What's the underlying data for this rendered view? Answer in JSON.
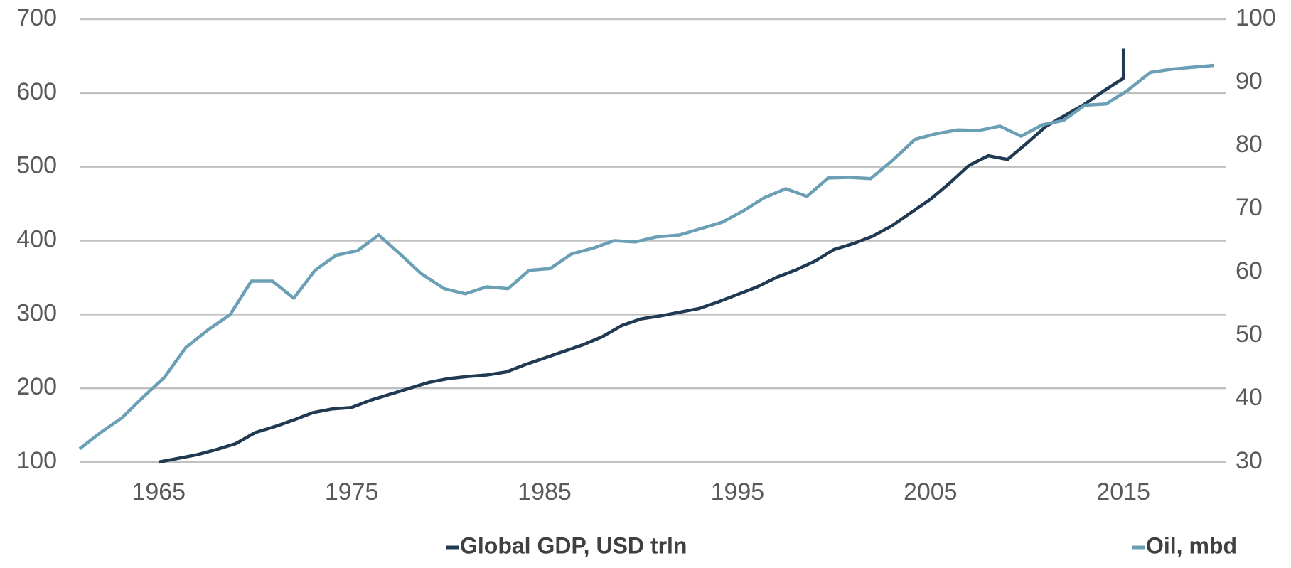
{
  "chart_data": {
    "type": "line",
    "xlim": [
      1960.9,
      2020.3
    ],
    "xticks": [
      1965,
      1975,
      1985,
      1995,
      2005,
      2015
    ],
    "ylim": [
      100,
      700
    ],
    "yticks": [
      100,
      200,
      300,
      400,
      500,
      600,
      700
    ],
    "y2lim": [
      30,
      100
    ],
    "y2ticks": [
      30,
      40,
      50,
      60,
      70,
      80,
      90,
      100
    ],
    "grid": true,
    "legend": "bottom",
    "series": [
      {
        "name": "Global GDP, USD trln",
        "color": "#1f3a52",
        "x": [
          1965,
          1966,
          1967,
          1968,
          1969,
          1970,
          1971,
          1972,
          1973,
          1974,
          1975,
          1976,
          1977,
          1978,
          1979,
          1980,
          1981,
          1982,
          1983,
          1984,
          1985,
          1986,
          1987,
          1988,
          1989,
          1990,
          1991,
          1992,
          1993,
          1994,
          1995,
          1996,
          1997,
          1998,
          1999,
          2000,
          2001,
          2002,
          2003,
          2004,
          2005,
          2006,
          2007,
          2008,
          2009,
          2010,
          2011,
          2012,
          2013,
          2014,
          2015,
          2015
        ],
        "values": [
          100,
          105,
          110,
          117,
          125,
          140,
          148,
          157,
          167,
          172,
          174,
          184,
          192,
          200,
          208,
          213,
          216,
          218,
          222,
          232,
          241,
          250,
          259,
          270,
          285,
          294,
          298,
          303,
          308,
          317,
          327,
          337,
          350,
          360,
          372,
          388,
          396,
          406,
          420,
          438,
          456,
          478,
          502,
          515,
          510,
          532,
          555,
          570,
          585,
          603,
          620,
          660
        ]
      },
      {
        "name": "Oil, mbd",
        "color": "#6a9fb5",
        "axis": "y2",
        "x": [
          1960.9,
          1962.0,
          1963.1,
          1964.2,
          1965.3,
          1966.4,
          1967.6,
          1968.7,
          1969.8,
          1970.9,
          1972.0,
          1973.1,
          1974.2,
          1975.3,
          1976.4,
          1977.5,
          1978.6,
          1979.8,
          1980.9,
          1982.0,
          1983.1,
          1984.2,
          1985.3,
          1986.4,
          1987.5,
          1988.6,
          1989.7,
          1990.8,
          1992.0,
          1993.1,
          1994.2,
          1995.3,
          1996.4,
          1997.5,
          1998.6,
          1999.7,
          2000.8,
          2001.9,
          2003.0,
          2004.2,
          2005.3,
          2006.4,
          2007.5,
          2008.6,
          2009.7,
          2010.8,
          2011.9,
          2013.0,
          2014.1,
          2015.2,
          2016.4,
          2017.5,
          2018.6,
          2019.7
        ],
        "values": [
          32.1,
          34.7,
          37.0,
          40.3,
          43.4,
          48.1,
          51.0,
          53.3,
          58.6,
          58.6,
          55.9,
          60.3,
          62.7,
          63.4,
          65.9,
          62.9,
          59.8,
          57.4,
          56.6,
          57.7,
          57.4,
          60.3,
          60.6,
          62.9,
          63.8,
          65.0,
          64.8,
          65.6,
          65.9,
          66.9,
          67.9,
          69.7,
          71.8,
          73.2,
          72.0,
          74.9,
          75.0,
          74.8,
          77.6,
          81.0,
          81.9,
          82.5,
          82.4,
          83.1,
          81.5,
          83.3,
          84.0,
          86.4,
          86.6,
          88.7,
          91.6,
          92.1,
          92.4,
          92.7
        ]
      }
    ]
  }
}
